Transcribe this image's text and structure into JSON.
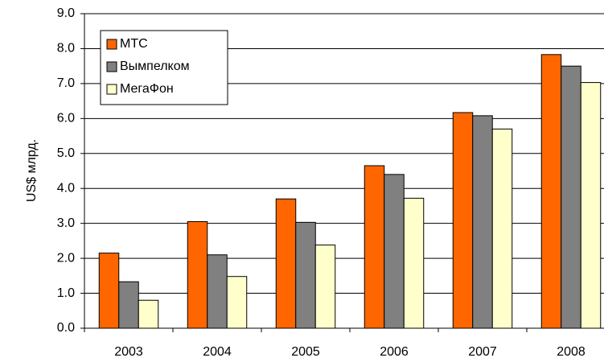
{
  "chart_data": {
    "type": "bar",
    "y_label": "US$ млрд.",
    "categories": [
      "2003",
      "2004",
      "2005",
      "2006",
      "2007",
      "2008"
    ],
    "series": [
      {
        "name": "МТС",
        "color": "#ff6600",
        "values": [
          2.15,
          3.05,
          3.7,
          4.65,
          6.17,
          7.83
        ]
      },
      {
        "name": "Вымпелком",
        "color": "#808080",
        "values": [
          1.33,
          2.1,
          3.03,
          4.4,
          6.08,
          7.5
        ]
      },
      {
        "name": "МегаФон",
        "color": "#ffffcc",
        "values": [
          0.8,
          1.48,
          2.38,
          3.72,
          5.7,
          7.03
        ]
      }
    ],
    "ylim": [
      0,
      9
    ],
    "yticks": [
      {
        "value": 0,
        "label": "0.0"
      },
      {
        "value": 1,
        "label": "1.0"
      },
      {
        "value": 2,
        "label": "2.0"
      },
      {
        "value": 3,
        "label": "3.0"
      },
      {
        "value": 4,
        "label": "4.0"
      },
      {
        "value": 5,
        "label": "5.0"
      },
      {
        "value": 6,
        "label": "6.0"
      },
      {
        "value": 7,
        "label": "7.0"
      },
      {
        "value": 8,
        "label": "8.0"
      },
      {
        "value": 9,
        "label": "9.0"
      }
    ],
    "grid": true,
    "legend": "upper left"
  }
}
